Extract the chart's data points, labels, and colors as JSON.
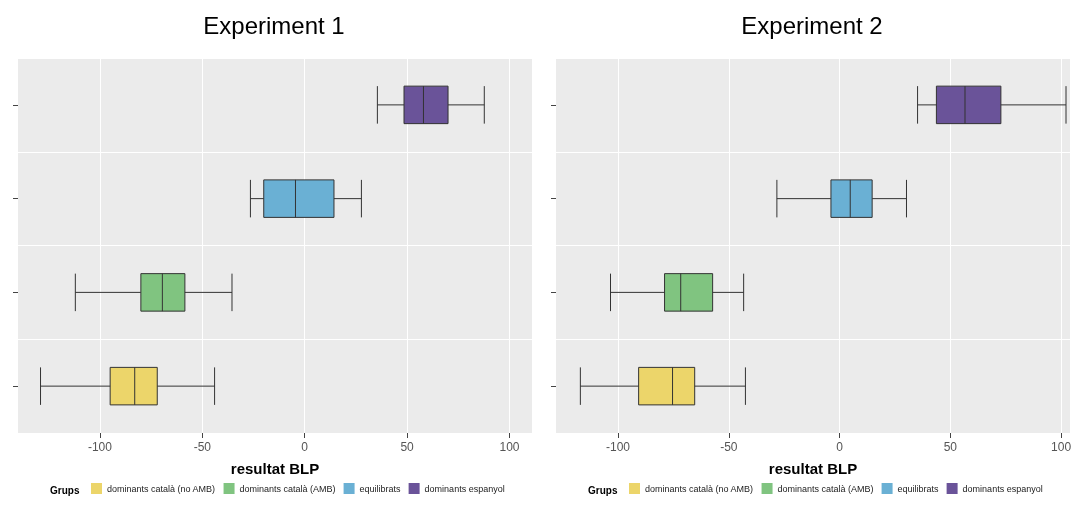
{
  "chart_data": [
    {
      "type": "box",
      "title": "Experiment 1",
      "xlabel": "resultat BLP",
      "legend_title": "Grups",
      "orientation": "horizontal",
      "categories": [
        null,
        null,
        null,
        null
      ],
      "xlim": [
        -140,
        111
      ],
      "xticks": [
        -100,
        -50,
        0,
        50,
        100
      ],
      "grid": true,
      "legend": "bottom",
      "tick_labels": "x",
      "series": [
        {
          "name": "dominants català (no AMB)",
          "color": "#ecd56a",
          "boxes": [
            null,
            null,
            null,
            {
              "low": -129,
              "q1": -95,
              "median": -83,
              "q3": -72,
              "high": -44
            }
          ]
        },
        {
          "name": "dominants català (AMB)",
          "color": "#80c480",
          "boxes": [
            null,
            null,
            {
              "low": -112,
              "q1": -80,
              "median": -69.5,
              "q3": -58.5,
              "high": -35.5
            },
            null
          ]
        },
        {
          "name": "equilibrats",
          "color": "#6ab0d4",
          "boxes": [
            null,
            {
              "low": -26.5,
              "q1": -20,
              "median": -4.5,
              "q3": 14.3,
              "high": 27.7
            },
            null,
            null
          ]
        },
        {
          "name": "dominants espanyol",
          "color": "#6a5399",
          "boxes": [
            {
              "low": 35.5,
              "q1": 48.5,
              "median": 58,
              "q3": 70,
              "high": 87.7
            },
            null,
            null,
            null
          ]
        }
      ]
    },
    {
      "type": "box",
      "title": "Experiment 2",
      "xlabel": "resultat BLP",
      "legend_title": "Grups",
      "orientation": "horizontal",
      "categories": [
        null,
        null,
        null,
        null
      ],
      "xlim": [
        -128,
        104
      ],
      "xticks": [
        -100,
        -50,
        0,
        50,
        100
      ],
      "grid": true,
      "legend": "bottom",
      "tick_labels": "x",
      "series": [
        {
          "name": "dominants català (no AMB)",
          "color": "#ecd56a",
          "boxes": [
            null,
            null,
            null,
            {
              "low": -117,
              "q1": -90.7,
              "median": -75.4,
              "q3": -65.4,
              "high": -42.5
            }
          ]
        },
        {
          "name": "dominants català (AMB)",
          "color": "#80c480",
          "boxes": [
            null,
            null,
            {
              "low": -103.4,
              "q1": -79,
              "median": -71.7,
              "q3": -57.3,
              "high": -43.3
            },
            null
          ]
        },
        {
          "name": "equilibrats",
          "color": "#6ab0d4",
          "boxes": [
            null,
            {
              "low": -28.3,
              "q1": -3.9,
              "median": 4.8,
              "q3": 14.7,
              "high": 30.2
            },
            null,
            null
          ]
        },
        {
          "name": "dominants espanyol",
          "color": "#6a5399",
          "boxes": [
            {
              "low": 35.2,
              "q1": 43.7,
              "median": 56.6,
              "q3": 72.8,
              "high": 102.2
            },
            null,
            null,
            null
          ]
        }
      ]
    }
  ]
}
